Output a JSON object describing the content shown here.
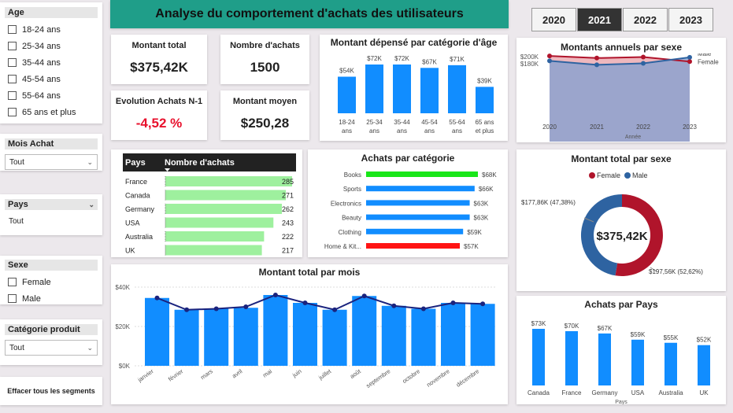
{
  "title": "Analyse du comportement d'achats des utilisateurs",
  "colors": {
    "accent": "#1f9e89",
    "bar": "#118dff",
    "male": "#2e63a1",
    "female": "#b0142b",
    "green": "#9ef09e"
  },
  "slicers": {
    "age": {
      "label": "Age",
      "options": [
        "18-24 ans",
        "25-34 ans",
        "35-44 ans",
        "45-54 ans",
        "55-64 ans",
        "65 ans et plus"
      ]
    },
    "mois": {
      "label": "Mois Achat",
      "value": "Tout"
    },
    "pays": {
      "label": "Pays",
      "value": "Tout"
    },
    "sexe": {
      "label": "Sexe",
      "options": [
        "Female",
        "Male"
      ]
    },
    "categorie": {
      "label": "Catégorie produit",
      "value": "Tout"
    },
    "clear": "Effacer tous les segments"
  },
  "years": [
    "2020",
    "2021",
    "2022",
    "2023"
  ],
  "selected_year": "2021",
  "kpis": {
    "montant_total": {
      "label": "Montant total",
      "value": "$375,42K"
    },
    "nb_achats": {
      "label": "Nombre d'achats",
      "value": "1500"
    },
    "evolution": {
      "label": "Evolution Achats N-1",
      "value": "-4,52 %"
    },
    "montant_moyen": {
      "label": "Montant moyen",
      "value": "$250,28"
    }
  },
  "charts": {
    "age": {
      "title": "Montant dépensé par catégorie d'âge",
      "chart_data": {
        "type": "bar",
        "categories": [
          [
            "18-24",
            "ans"
          ],
          [
            "25-34",
            "ans"
          ],
          [
            "35-44",
            "ans"
          ],
          [
            "45-54",
            "ans"
          ],
          [
            "55-64",
            "ans"
          ],
          [
            "65 ans",
            "et plus"
          ]
        ],
        "values": [
          54,
          72,
          72,
          67,
          71,
          39
        ],
        "labels": [
          "$54K",
          "$72K",
          "$72K",
          "$67K",
          "$71K",
          "$39K"
        ]
      }
    },
    "sexe_annuel": {
      "title": "Montants annuels par sexe",
      "chart_data": {
        "type": "area",
        "x": [
          "2020",
          "2021",
          "2022",
          "2023"
        ],
        "xlabel": "Année",
        "ticks": [
          "$200K",
          "$180K"
        ],
        "tick_values": [
          200,
          180
        ],
        "series": [
          {
            "name": "Female",
            "values": [
              202,
              196,
              199,
              186
            ]
          },
          {
            "name": "Male",
            "values": [
              188,
              177,
              181,
              198
            ]
          }
        ]
      }
    },
    "pays_table": {
      "headers": [
        "Pays",
        "Nombre d'achats"
      ],
      "rows": [
        {
          "pays": "France",
          "n": 285
        },
        {
          "pays": "Canada",
          "n": 271
        },
        {
          "pays": "Germany",
          "n": 262
        },
        {
          "pays": "USA",
          "n": 243
        },
        {
          "pays": "Australia",
          "n": 222
        },
        {
          "pays": "UK",
          "n": 217
        }
      ]
    },
    "categorie": {
      "title": "Achats par catégorie",
      "chart_data": {
        "type": "bar",
        "categories": [
          "Books",
          "Sports",
          "Electronics",
          "Beauty",
          "Clothing",
          "Home & Kit..."
        ],
        "values": [
          68,
          66,
          63,
          63,
          59,
          57
        ],
        "labels": [
          "$68K",
          "$66K",
          "$63K",
          "$63K",
          "$59K",
          "$57K"
        ]
      }
    },
    "sexe_total": {
      "title": "Montant total par sexe",
      "center": "$375,42K",
      "legend": [
        "Female",
        "Male"
      ],
      "chart_data": {
        "type": "pie",
        "slices": [
          {
            "name": "Female",
            "value": 197.56,
            "label": "$197,56K (52,62%)"
          },
          {
            "name": "Male",
            "value": 177.86,
            "label": "$177,86K (47,38%)"
          }
        ]
      }
    },
    "mois": {
      "title": "Montant total par mois",
      "chart_data": {
        "type": "bar",
        "categories": [
          "janvier",
          "février",
          "mars",
          "avril",
          "mai",
          "juin",
          "juillet",
          "août",
          "septembre",
          "octobre",
          "novembre",
          "décembre"
        ],
        "values": [
          34.5,
          28.5,
          29,
          29.5,
          36,
          32,
          28.5,
          35.5,
          30.5,
          29,
          32,
          31.5
        ],
        "line_values": [
          34.5,
          28.5,
          29,
          30,
          36,
          32,
          28.5,
          35.5,
          30.5,
          29,
          32,
          31.5
        ],
        "ticks": [
          "$40K",
          "$20K",
          "$0K"
        ],
        "tick_values": [
          40,
          20,
          0
        ]
      }
    },
    "pays": {
      "title": "Achats par Pays",
      "chart_data": {
        "type": "bar",
        "categories": [
          "Canada",
          "France",
          "Germany",
          "USA",
          "Australia",
          "UK"
        ],
        "values": [
          73,
          70,
          67,
          59,
          55,
          52
        ],
        "labels": [
          "$73K",
          "$70K",
          "$67K",
          "$59K",
          "$55K",
          "$52K"
        ],
        "xlabel": "Pays"
      }
    }
  }
}
